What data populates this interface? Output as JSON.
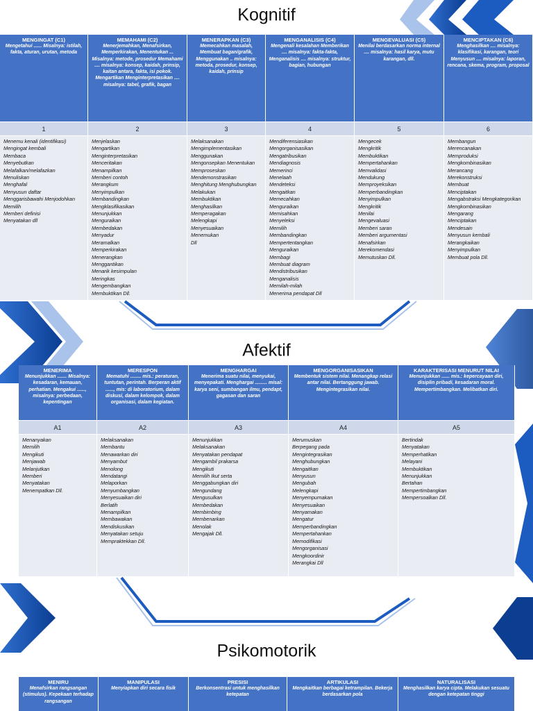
{
  "sections": [
    {
      "title": "Kognitif",
      "columns": [
        {
          "heading": "MENGINGAT (C1)",
          "description": "Mengetahui ...... Misalnya: istilah, fakta, aturan, urutan, metoda",
          "number": "1",
          "items": [
            "Menemu kenali (identifikasi)",
            "Mengingat kembali",
            "Membaca",
            "Menyebutkan",
            "Melafalkan/melafazkan",
            "Menuliskan",
            "Menghafal",
            "Menyusun daftar",
            "Menggarisbawahi Menjodohkan",
            "Memilih",
            "Memberi definisi",
            "Menyatakan dll"
          ]
        },
        {
          "heading": "MEMAHAMI (C2)",
          "description": "Menerjemahkan, Menafsirkan, Memperkirakan, Menentukan ... Misalnya: metode, prosedur Memahami .... misalnya: konsep, kaidah, prinsip, kaitan antara, fakta, isi pokok. Mengartikan Menginterpretasikan .... misalnya: tabel, grafik, bagan",
          "number": "2",
          "items": [
            "Menjelaskan",
            "Mengartikan",
            "Menginterpretasikan",
            "Menceritakan",
            "Menampilkan",
            "Memberi contoh",
            "Merangkum",
            "Menyimpulkan",
            "Membandingkan",
            "Mengklasifikasikan",
            "Menunjukkan",
            "Menguraikan",
            "Membedakan",
            "Menyadur",
            "Meramalkan",
            "Memperkirakan",
            "Menerangkan",
            "Menggantikan",
            "Menarik kesimpulan",
            "Meringkas",
            "Mengembangkan",
            "Membuktikan Dll."
          ]
        },
        {
          "heading": "MENERAPKAN (C3)",
          "description": "Memecahkan masalah, Membuat bagan/grafik, Menggunakan .. misalnya: metoda, prosedur, konsep, kaidah, prinsip",
          "number": "3",
          "items": [
            "Melaksanakan",
            "Mengimplementasikan",
            "Menggunakan",
            "Mengonsepkan Menentukan",
            "Memproseskan",
            "Mendemonstrasikan",
            "Menghitung Menghubungkan",
            "Melakukan",
            "Membuktikan",
            "Menghasilkan",
            "Memperagakan",
            "Melengkapi",
            "Menyesuaikan",
            "Menemukan",
            "Dll"
          ]
        },
        {
          "heading": "MENGANALISIS (C4)",
          "description": "Mengenali kesalahan Memberikan .... misalnya: fakta-fakta, Menganalisis .... misalnya: struktur, bagian, hubungan",
          "number": "4",
          "items": [
            "Mendiferensiasikan",
            "Mengorganisasikan",
            "Mengatribusikan",
            "Mendiagnosis",
            "Memerinci",
            "Menelaah",
            "Mendeteksi",
            "Mengaitkan",
            "Memecahkan",
            "Menguraikan",
            "Memisahkan",
            "Menyeleksi",
            "Memilih",
            "Membandingkan",
            "Mempertentangkan",
            "Menguraikan",
            "Membagi",
            "Membuat diagram",
            "Mendistribusikan",
            "Menganalisis",
            "Memilah-milah",
            "Menerima pendapat Dll"
          ]
        },
        {
          "heading": "MENGEVALUASI (C5)",
          "description": "Menilai berdasarkan norma internal .... misalnya: hasil karya, mutu karangan, dll.",
          "number": "5",
          "items": [
            "Mengecek",
            "Mengkritik",
            "Membuktikan",
            "Mempertahankan",
            "Memvalidasi",
            "Mendukung",
            "Memproyeksikan",
            "Memperbandingkan",
            "Menyimpulkan",
            "Mengkritik",
            "Menilai",
            "Mengevaluasi",
            "Memberi saran",
            "Memberi argumentasi",
            "Menafsirkan",
            "Merekomendasi",
            "Memutuskan Dll."
          ]
        },
        {
          "heading": "MENCIPTAKAN (C6)",
          "description": "Menghasilkan .... misalnya: klasifikasi, karangan, teori Menyusun .... misalnya: laporan, rencana, skema, program, proposal",
          "number": "6",
          "items": [
            "Membangun",
            "Merencanakan",
            "Memproduksi",
            "Mengkombinasikan",
            "Merancang",
            "Merekonstruksi",
            "Membuat",
            "Menciptakan",
            "Mengabstraksi Mengkategorikan",
            "Mengkombinasikan",
            "Mengarang",
            "Menciptakan",
            "Mendesain",
            "Menyusun kembali",
            "Merangkaikan",
            "Menyimpulkan",
            "Membuat pola Dll."
          ]
        }
      ]
    },
    {
      "title": "Afektif",
      "columns": [
        {
          "heading": "MENERIMA",
          "description": "Menunjukkan ....... Misalnya: kesadaran, kemauan, perhatian. Mengakui ......, misalnya: perbedaan, kepentingan",
          "number": "A1",
          "items": [
            "Menanyakan",
            "Memilih",
            "Mengikuti",
            "Menjawab",
            "Melanjutkan",
            "Memberi",
            "Menyatakan",
            "Menempatkan Dll."
          ]
        },
        {
          "heading": "MERESPON",
          "description": "Mematuhi ........ mis.: peraturan, tuntutan, perintah. Berperan aktif ......, mis: di laboratorium, dalam diskusi, dalam kelompok, dalam organisasi, dalam kegiatan.",
          "number": "A2",
          "items": [
            "Melaksanakan",
            "Membantu",
            "Menawarkan diri",
            "Menyambut",
            "Menolong",
            "Mendatangi",
            "Melaporkan",
            "Menyumbangkan",
            "Menyesuaikan diri",
            "Berlatih",
            "Menampilkan",
            "Membawakan",
            "Mendiskusikan",
            "Menyatakan setuju",
            "Mempraktekkan Dll."
          ]
        },
        {
          "heading": "MENGHARGAI",
          "description": "Menerima suatu nilai, menyukai, menyepakati. Menghargai ......... misal: karya seni, sumbangan ilmu, pendapt, gagasan dan saran",
          "number": "A3",
          "items": [
            "Menunjukkan",
            "Melaksanakan",
            "Menyatakan pendapat",
            "Mengambil prakarsa",
            "Mengikuti",
            "Memilih Ikut serta",
            "Menggabungkan diri",
            "Mengundang",
            "Mengusulkan",
            "Membedakan",
            "Membimbing",
            "Membenarkan",
            "Menolak",
            "Mengajak Dll."
          ]
        },
        {
          "heading": "MENGORGANISASIKAN",
          "description": "Membentuk sistem nilai. Menangkap relasi antar nilai. Bertanggung jawab. Mengintegrasikan nilai.",
          "number": "A4",
          "items": [
            "Merumuskan",
            "Berpegang pada",
            "Mengintegrasikan",
            "Menghubungkan",
            "Mengaitkan",
            "Menyusun",
            "Mengubah",
            "Melengkapi",
            "Menyempurnakan",
            "Menyesuaikan",
            "Menyamakan",
            "Mengatur",
            "Memperbandingkan",
            "Mempertahankan",
            "Memodifikasi",
            "Mengorganisasi",
            "Mengkoordinir",
            "Merangkai Dll"
          ]
        },
        {
          "heading": "KARAKTERISASI MENURUT NILAI",
          "description": "Menunjukkan ...... mis.: kepercayaan diri, disiplin pribadi, kesadaran moral. Mempertimbangkan. Melibatkan diri.",
          "number": "A5",
          "items": [
            "Bertindak",
            "Menyatakan",
            "Memperhatikan",
            "Melayani",
            "Membuktikan",
            "Menunjukkan",
            "Bertahan",
            "Mempertimbangkan",
            "Mempersoalkan Dll."
          ]
        }
      ]
    },
    {
      "title": "Psikomotorik",
      "columns": [
        {
          "heading": "MENIRU",
          "description": "Menafsirkan rangsangan (stimulus). Kepekaan terhadap rangsangan"
        },
        {
          "heading": "MANIPULASI",
          "description": "Menyiapkan diri secara fisik"
        },
        {
          "heading": "PRESISI",
          "description": "Berkonsentrasi untuk menghasilkan ketepatan"
        },
        {
          "heading": "ARTIKULASI",
          "description": "Mengkaitkan berbagai ketrampilan. Bekerja berdasarkan pola"
        },
        {
          "heading": "NATURALISASI",
          "description": "Menghasilkan karya cipta. Melakukan sesuatu dengan ketepatan tinggi"
        }
      ]
    }
  ]
}
